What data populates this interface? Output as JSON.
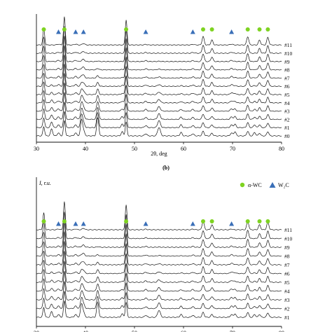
{
  "figure": {
    "panel_label": "(b)"
  },
  "chart_data": [
    {
      "type": "line",
      "xlabel": "2θ, deg",
      "ylabel": "",
      "xlim": [
        30,
        80
      ],
      "xticks": [
        "30",
        "40",
        "50",
        "60",
        "70",
        "80"
      ],
      "grid": false,
      "series": [
        {
          "name": "#0"
        },
        {
          "name": "#1"
        },
        {
          "name": "#2"
        },
        {
          "name": "#3"
        },
        {
          "name": "#4"
        },
        {
          "name": "#5"
        },
        {
          "name": "#6"
        },
        {
          "name": "#7"
        },
        {
          "name": "#8"
        },
        {
          "name": "#9"
        },
        {
          "name": "#10"
        },
        {
          "name": "#11"
        }
      ],
      "markers": {
        "alpha_WC": {
          "color": "#7ed321",
          "x": [
            31.5,
            35.7,
            48.3,
            64.0,
            65.8,
            73.1,
            75.5,
            77.2
          ]
        },
        "W2C": {
          "color": "#3a6fb8",
          "x": [
            34.5,
            38.0,
            39.6,
            52.3,
            61.9,
            69.8
          ]
        }
      }
    },
    {
      "type": "line",
      "xlabel": "",
      "ylabel": "I, r.u.",
      "xlim": [
        30,
        80
      ],
      "xticks": [
        "30",
        "40",
        "50",
        "60",
        "70",
        "80"
      ],
      "grid": false,
      "legend": {
        "placement": "top-right",
        "entries": [
          {
            "label": "α-WC",
            "marker": "circle",
            "color": "#7ed321"
          },
          {
            "label": "W₂C",
            "marker": "triangle",
            "color": "#3a6fb8"
          }
        ]
      },
      "series": [
        {
          "name": "#1"
        },
        {
          "name": "#2"
        },
        {
          "name": "#3"
        },
        {
          "name": "#4"
        },
        {
          "name": "#5"
        },
        {
          "name": "#6"
        },
        {
          "name": "#7"
        },
        {
          "name": "#8"
        },
        {
          "name": "#9"
        },
        {
          "name": "#10"
        },
        {
          "name": "#11"
        }
      ],
      "markers": {
        "alpha_WC": {
          "color": "#7ed321",
          "x": [
            31.5,
            35.7,
            48.3,
            64.0,
            65.8,
            73.1,
            75.5,
            77.2
          ]
        },
        "W2C": {
          "color": "#3a6fb8",
          "x": [
            34.5,
            38.0,
            39.6,
            52.3,
            61.9,
            69.8
          ]
        }
      }
    }
  ]
}
